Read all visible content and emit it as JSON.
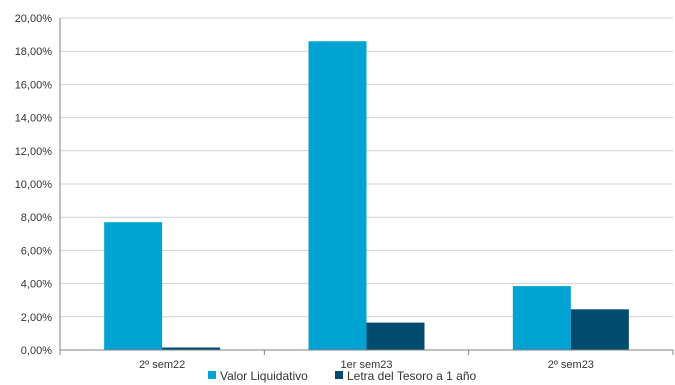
{
  "chart_data": {
    "type": "bar",
    "title": "",
    "xlabel": "",
    "ylabel": "",
    "categories": [
      "2º sem22",
      "1er sem23",
      "2º sem23"
    ],
    "series": [
      {
        "name": "Valor Liquidativo",
        "color": "#00a3d2",
        "values": [
          7.7,
          18.6,
          3.85
        ]
      },
      {
        "name": "Letra del Tesoro a 1 año",
        "color": "#004b6e",
        "values": [
          0.15,
          1.65,
          2.45
        ]
      }
    ],
    "ylim": [
      0,
      20
    ],
    "yticks": [
      "0,00%",
      "2,00%",
      "4,00%",
      "6,00%",
      "8,00%",
      "10,00%",
      "12,00%",
      "14,00%",
      "16,00%",
      "18,00%",
      "20,00%"
    ],
    "grid": true,
    "legend": "bottom-center"
  }
}
